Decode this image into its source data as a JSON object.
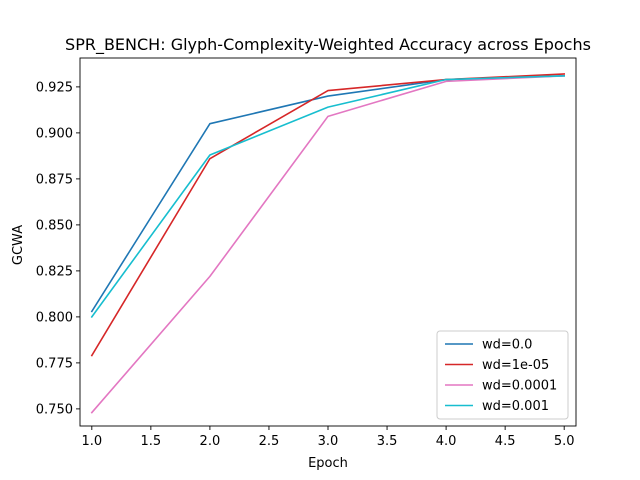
{
  "chart_data": {
    "type": "line",
    "title": "SPR_BENCH: Glyph-Complexity-Weighted Accuracy across Epochs",
    "xlabel": "Epoch",
    "ylabel": "GCWA",
    "x": [
      1,
      2,
      3,
      4,
      5
    ],
    "xlim": [
      0.9,
      5.1
    ],
    "ylim": [
      0.7407,
      0.9407
    ],
    "xticks": [
      1.0,
      1.5,
      2.0,
      2.5,
      3.0,
      3.5,
      4.0,
      4.5,
      5.0
    ],
    "xtick_labels": [
      "1.0",
      "1.5",
      "2.0",
      "2.5",
      "3.0",
      "3.5",
      "4.0",
      "4.5",
      "5.0"
    ],
    "yticks": [
      0.75,
      0.775,
      0.8,
      0.825,
      0.85,
      0.875,
      0.9,
      0.925
    ],
    "ytick_labels": [
      "0.750",
      "0.775",
      "0.800",
      "0.825",
      "0.850",
      "0.875",
      "0.900",
      "0.925"
    ],
    "grid": false,
    "legend_position": "lower-right",
    "series": [
      {
        "name": "wd=0.0",
        "color": "#1f77b4",
        "values": [
          0.803,
          0.905,
          0.92,
          0.929,
          0.931
        ]
      },
      {
        "name": "wd=1e-05",
        "color": "#d62728",
        "values": [
          0.779,
          0.886,
          0.923,
          0.929,
          0.932
        ]
      },
      {
        "name": "wd=0.0001",
        "color": "#e377c2",
        "values": [
          0.748,
          0.822,
          0.909,
          0.928,
          0.931
        ]
      },
      {
        "name": "wd=0.001",
        "color": "#17becf",
        "values": [
          0.8,
          0.888,
          0.914,
          0.929,
          0.931
        ]
      }
    ]
  }
}
